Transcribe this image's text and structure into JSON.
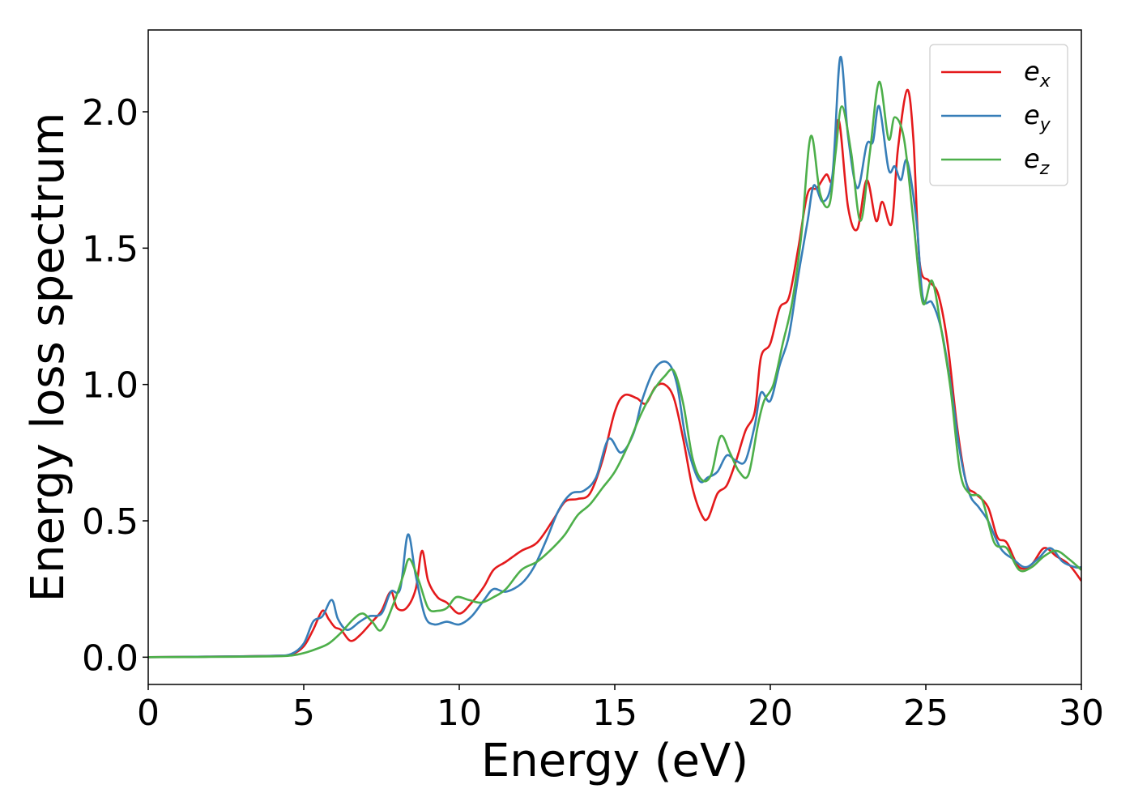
{
  "chart_data": {
    "type": "line",
    "xlabel": "Energy (eV)",
    "ylabel": "Energy loss spectrum",
    "xlim": [
      0,
      30
    ],
    "ylim": [
      -0.1,
      2.3
    ],
    "xticks": [
      0,
      5,
      10,
      15,
      20,
      25,
      30
    ],
    "xtick_labels": [
      "0",
      "5",
      "10",
      "15",
      "20",
      "25",
      "30"
    ],
    "yticks": [
      0.0,
      0.5,
      1.0,
      1.5,
      2.0
    ],
    "ytick_labels": [
      "0.0",
      "0.5",
      "1.0",
      "1.5",
      "2.0"
    ],
    "grid": false,
    "legend_position": "top-right",
    "series": [
      {
        "name": "e_x",
        "legend_base": "e",
        "legend_sub": "x",
        "color": "#e41a1c",
        "points": [
          [
            0,
            0
          ],
          [
            2,
            0.002
          ],
          [
            4,
            0.005
          ],
          [
            4.6,
            0.01
          ],
          [
            5.0,
            0.04
          ],
          [
            5.3,
            0.1
          ],
          [
            5.6,
            0.17
          ],
          [
            5.8,
            0.14
          ],
          [
            6.0,
            0.11
          ],
          [
            6.2,
            0.1
          ],
          [
            6.5,
            0.06
          ],
          [
            6.8,
            0.08
          ],
          [
            7.2,
            0.13
          ],
          [
            7.5,
            0.17
          ],
          [
            7.8,
            0.24
          ],
          [
            8.0,
            0.18
          ],
          [
            8.3,
            0.18
          ],
          [
            8.6,
            0.25
          ],
          [
            8.8,
            0.39
          ],
          [
            9.0,
            0.28
          ],
          [
            9.3,
            0.22
          ],
          [
            9.6,
            0.2
          ],
          [
            10.0,
            0.16
          ],
          [
            10.4,
            0.2
          ],
          [
            10.8,
            0.26
          ],
          [
            11.1,
            0.32
          ],
          [
            11.5,
            0.35
          ],
          [
            12.0,
            0.39
          ],
          [
            12.5,
            0.42
          ],
          [
            13.0,
            0.5
          ],
          [
            13.4,
            0.57
          ],
          [
            13.8,
            0.58
          ],
          [
            14.2,
            0.6
          ],
          [
            14.6,
            0.72
          ],
          [
            15.0,
            0.9
          ],
          [
            15.3,
            0.96
          ],
          [
            15.7,
            0.95
          ],
          [
            16.0,
            0.93
          ],
          [
            16.3,
            0.99
          ],
          [
            16.6,
            1.0
          ],
          [
            16.9,
            0.95
          ],
          [
            17.2,
            0.8
          ],
          [
            17.5,
            0.62
          ],
          [
            17.8,
            0.52
          ],
          [
            18.0,
            0.51
          ],
          [
            18.3,
            0.6
          ],
          [
            18.6,
            0.63
          ],
          [
            18.9,
            0.72
          ],
          [
            19.2,
            0.83
          ],
          [
            19.5,
            0.9
          ],
          [
            19.7,
            1.1
          ],
          [
            20.0,
            1.15
          ],
          [
            20.3,
            1.28
          ],
          [
            20.6,
            1.32
          ],
          [
            20.9,
            1.5
          ],
          [
            21.2,
            1.7
          ],
          [
            21.5,
            1.72
          ],
          [
            21.8,
            1.77
          ],
          [
            22.0,
            1.75
          ],
          [
            22.2,
            1.97
          ],
          [
            22.5,
            1.65
          ],
          [
            22.8,
            1.57
          ],
          [
            23.1,
            1.75
          ],
          [
            23.4,
            1.6
          ],
          [
            23.6,
            1.67
          ],
          [
            23.9,
            1.59
          ],
          [
            24.1,
            1.86
          ],
          [
            24.4,
            2.08
          ],
          [
            24.6,
            1.9
          ],
          [
            24.8,
            1.45
          ],
          [
            25.1,
            1.38
          ],
          [
            25.4,
            1.33
          ],
          [
            25.7,
            1.15
          ],
          [
            26.0,
            0.85
          ],
          [
            26.3,
            0.64
          ],
          [
            26.6,
            0.6
          ],
          [
            27.0,
            0.55
          ],
          [
            27.3,
            0.44
          ],
          [
            27.6,
            0.42
          ],
          [
            28.0,
            0.33
          ],
          [
            28.4,
            0.34
          ],
          [
            28.8,
            0.4
          ],
          [
            29.2,
            0.37
          ],
          [
            29.6,
            0.34
          ],
          [
            30,
            0.28
          ]
        ]
      },
      {
        "name": "e_y",
        "legend_base": "e",
        "legend_sub": "y",
        "color": "#377eb8",
        "points": [
          [
            0,
            0
          ],
          [
            2,
            0.002
          ],
          [
            4,
            0.005
          ],
          [
            4.6,
            0.012
          ],
          [
            5.0,
            0.05
          ],
          [
            5.3,
            0.13
          ],
          [
            5.6,
            0.15
          ],
          [
            5.9,
            0.21
          ],
          [
            6.1,
            0.14
          ],
          [
            6.4,
            0.1
          ],
          [
            6.8,
            0.13
          ],
          [
            7.1,
            0.15
          ],
          [
            7.5,
            0.16
          ],
          [
            7.8,
            0.24
          ],
          [
            8.1,
            0.25
          ],
          [
            8.35,
            0.45
          ],
          [
            8.6,
            0.3
          ],
          [
            8.9,
            0.15
          ],
          [
            9.2,
            0.12
          ],
          [
            9.6,
            0.13
          ],
          [
            10.0,
            0.12
          ],
          [
            10.4,
            0.15
          ],
          [
            10.8,
            0.21
          ],
          [
            11.1,
            0.25
          ],
          [
            11.5,
            0.24
          ],
          [
            12.0,
            0.27
          ],
          [
            12.4,
            0.33
          ],
          [
            12.8,
            0.43
          ],
          [
            13.2,
            0.54
          ],
          [
            13.6,
            0.6
          ],
          [
            14.0,
            0.61
          ],
          [
            14.4,
            0.66
          ],
          [
            14.8,
            0.8
          ],
          [
            15.2,
            0.75
          ],
          [
            15.6,
            0.82
          ],
          [
            15.9,
            0.95
          ],
          [
            16.3,
            1.06
          ],
          [
            16.7,
            1.08
          ],
          [
            17.0,
            1.0
          ],
          [
            17.3,
            0.79
          ],
          [
            17.7,
            0.65
          ],
          [
            18.0,
            0.66
          ],
          [
            18.3,
            0.68
          ],
          [
            18.6,
            0.74
          ],
          [
            18.9,
            0.72
          ],
          [
            19.2,
            0.72
          ],
          [
            19.5,
            0.85
          ],
          [
            19.7,
            0.97
          ],
          [
            20.0,
            0.94
          ],
          [
            20.3,
            1.07
          ],
          [
            20.6,
            1.18
          ],
          [
            20.9,
            1.4
          ],
          [
            21.2,
            1.6
          ],
          [
            21.4,
            1.73
          ],
          [
            21.7,
            1.67
          ],
          [
            22.0,
            1.77
          ],
          [
            22.25,
            2.2
          ],
          [
            22.5,
            1.91
          ],
          [
            22.8,
            1.72
          ],
          [
            23.1,
            1.88
          ],
          [
            23.3,
            1.89
          ],
          [
            23.5,
            2.02
          ],
          [
            23.8,
            1.79
          ],
          [
            24.0,
            1.8
          ],
          [
            24.2,
            1.75
          ],
          [
            24.4,
            1.82
          ],
          [
            24.7,
            1.6
          ],
          [
            24.9,
            1.32
          ],
          [
            25.2,
            1.3
          ],
          [
            25.5,
            1.2
          ],
          [
            25.8,
            1.0
          ],
          [
            26.1,
            0.75
          ],
          [
            26.4,
            0.6
          ],
          [
            26.7,
            0.55
          ],
          [
            27.0,
            0.5
          ],
          [
            27.4,
            0.4
          ],
          [
            27.8,
            0.36
          ],
          [
            28.2,
            0.33
          ],
          [
            28.6,
            0.36
          ],
          [
            29.0,
            0.4
          ],
          [
            29.4,
            0.35
          ],
          [
            29.8,
            0.33
          ],
          [
            30,
            0.33
          ]
        ]
      },
      {
        "name": "e_z",
        "legend_base": "e",
        "legend_sub": "z",
        "color": "#4daf4a",
        "points": [
          [
            0,
            0
          ],
          [
            2,
            0.001
          ],
          [
            4,
            0.003
          ],
          [
            4.6,
            0.006
          ],
          [
            5.0,
            0.015
          ],
          [
            5.4,
            0.03
          ],
          [
            5.8,
            0.05
          ],
          [
            6.2,
            0.09
          ],
          [
            6.6,
            0.14
          ],
          [
            6.9,
            0.16
          ],
          [
            7.2,
            0.13
          ],
          [
            7.5,
            0.1
          ],
          [
            7.9,
            0.2
          ],
          [
            8.2,
            0.3
          ],
          [
            8.4,
            0.36
          ],
          [
            8.7,
            0.28
          ],
          [
            9.0,
            0.18
          ],
          [
            9.3,
            0.17
          ],
          [
            9.6,
            0.18
          ],
          [
            9.9,
            0.22
          ],
          [
            10.3,
            0.21
          ],
          [
            10.7,
            0.2
          ],
          [
            11.1,
            0.22
          ],
          [
            11.5,
            0.25
          ],
          [
            12.0,
            0.32
          ],
          [
            12.5,
            0.35
          ],
          [
            13.0,
            0.4
          ],
          [
            13.4,
            0.45
          ],
          [
            13.8,
            0.52
          ],
          [
            14.2,
            0.56
          ],
          [
            14.6,
            0.62
          ],
          [
            15.0,
            0.68
          ],
          [
            15.4,
            0.77
          ],
          [
            15.8,
            0.88
          ],
          [
            16.2,
            0.97
          ],
          [
            16.6,
            1.03
          ],
          [
            16.9,
            1.05
          ],
          [
            17.2,
            0.93
          ],
          [
            17.5,
            0.73
          ],
          [
            17.8,
            0.65
          ],
          [
            18.1,
            0.67
          ],
          [
            18.4,
            0.81
          ],
          [
            18.7,
            0.75
          ],
          [
            19.0,
            0.68
          ],
          [
            19.3,
            0.67
          ],
          [
            19.6,
            0.85
          ],
          [
            19.8,
            0.94
          ],
          [
            20.1,
            1.0
          ],
          [
            20.4,
            1.15
          ],
          [
            20.7,
            1.3
          ],
          [
            21.0,
            1.55
          ],
          [
            21.3,
            1.91
          ],
          [
            21.6,
            1.7
          ],
          [
            21.9,
            1.66
          ],
          [
            22.1,
            1.85
          ],
          [
            22.3,
            2.02
          ],
          [
            22.6,
            1.85
          ],
          [
            22.9,
            1.6
          ],
          [
            23.2,
            1.85
          ],
          [
            23.5,
            2.11
          ],
          [
            23.8,
            1.9
          ],
          [
            24.0,
            1.98
          ],
          [
            24.3,
            1.9
          ],
          [
            24.6,
            1.6
          ],
          [
            24.9,
            1.3
          ],
          [
            25.2,
            1.38
          ],
          [
            25.5,
            1.2
          ],
          [
            25.8,
            0.98
          ],
          [
            26.1,
            0.68
          ],
          [
            26.4,
            0.6
          ],
          [
            26.8,
            0.58
          ],
          [
            27.2,
            0.42
          ],
          [
            27.6,
            0.4
          ],
          [
            28.0,
            0.32
          ],
          [
            28.4,
            0.33
          ],
          [
            28.8,
            0.37
          ],
          [
            29.2,
            0.39
          ],
          [
            29.6,
            0.36
          ],
          [
            30,
            0.32
          ]
        ]
      }
    ]
  }
}
